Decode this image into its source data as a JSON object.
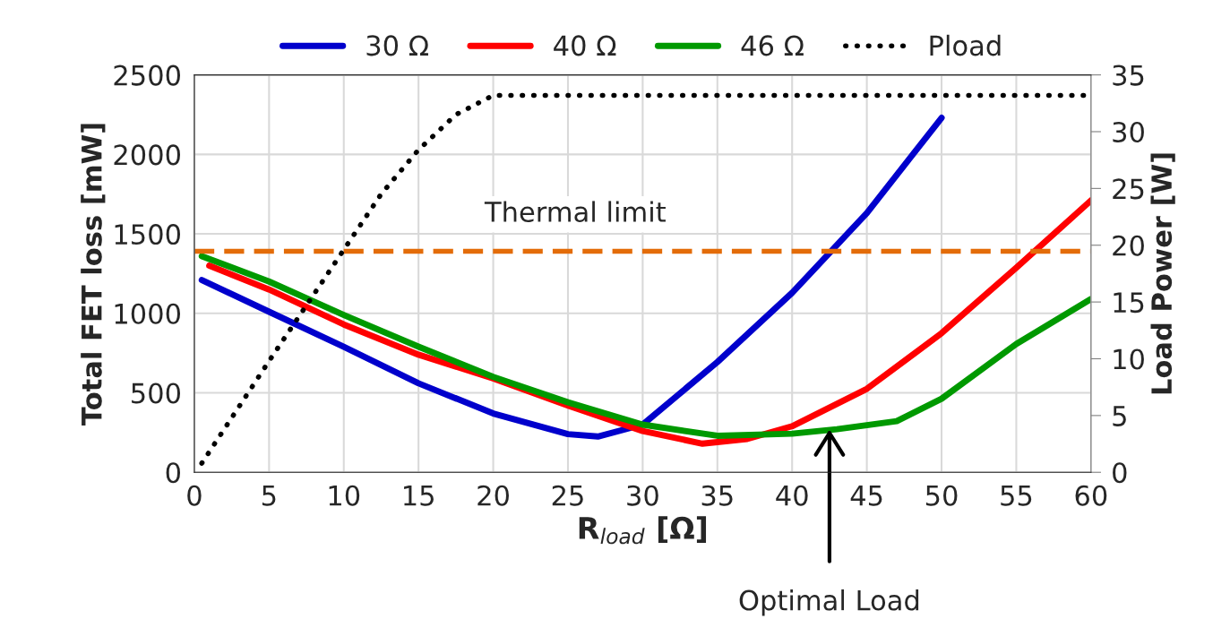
{
  "chart_data": {
    "type": "line",
    "xlabel": "R$_{load}$ [Ω]",
    "ylabel": "Total FET loss [mW]",
    "y2label": "Load Power [W]",
    "xlim": [
      0,
      60
    ],
    "xticks": [
      0,
      5,
      10,
      15,
      20,
      25,
      30,
      35,
      40,
      45,
      50,
      55,
      60
    ],
    "ylim": [
      0,
      2500
    ],
    "yticks": [
      0,
      500,
      1000,
      1500,
      2000,
      2500
    ],
    "y2lim": [
      0,
      35
    ],
    "y2ticks": [
      0,
      5,
      10,
      15,
      20,
      25,
      30,
      35
    ],
    "grid": true,
    "legend": "top",
    "line_style": "solid",
    "marker": "none",
    "series": [
      {
        "name": "30 Ω",
        "color": "#0000cc",
        "x": [
          0.5,
          5,
          10,
          15,
          20,
          25,
          27,
          30,
          35,
          40,
          42.5,
          45,
          50
        ],
        "values": [
          1210,
          1010,
          790,
          560,
          370,
          240,
          225,
          300,
          694,
          1129,
          1380,
          1631,
          2230
        ]
      },
      {
        "name": "40 Ω",
        "color": "#ff0000",
        "x": [
          1,
          5,
          10,
          15,
          20,
          25,
          30,
          34,
          37,
          40,
          45,
          50,
          55,
          60
        ],
        "values": [
          1300,
          1150,
          930,
          740,
          590,
          420,
          260,
          180,
          210,
          290,
          525,
          875,
          1287,
          1710
        ]
      },
      {
        "name": "46 Ω",
        "color": "#009900",
        "x": [
          0.5,
          5,
          10,
          15,
          20,
          25,
          30,
          35,
          40,
          43,
          47,
          50,
          55,
          60
        ],
        "values": [
          1360,
          1200,
          990,
          790,
          600,
          440,
          300,
          230,
          243,
          271,
          322,
          463,
          807,
          1090
        ]
      },
      {
        "name": "Pload",
        "color": "#000000",
        "axis": "y2",
        "line_style": "dotted",
        "x": [
          0.5,
          5,
          10,
          12.5,
          15,
          17.5,
          20,
          60
        ],
        "values": [
          0.8,
          9.8,
          19.6,
          24.5,
          28.4,
          31.5,
          33.2,
          33.2
        ]
      }
    ],
    "ref_lines": [
      {
        "axis": "y",
        "value": 1390,
        "label": "Thermal limit",
        "color": "#e36c09",
        "line_style": "dashed"
      }
    ],
    "annotations": [
      {
        "text": "Optimal Load",
        "x": 42.5,
        "y": 270
      }
    ]
  }
}
